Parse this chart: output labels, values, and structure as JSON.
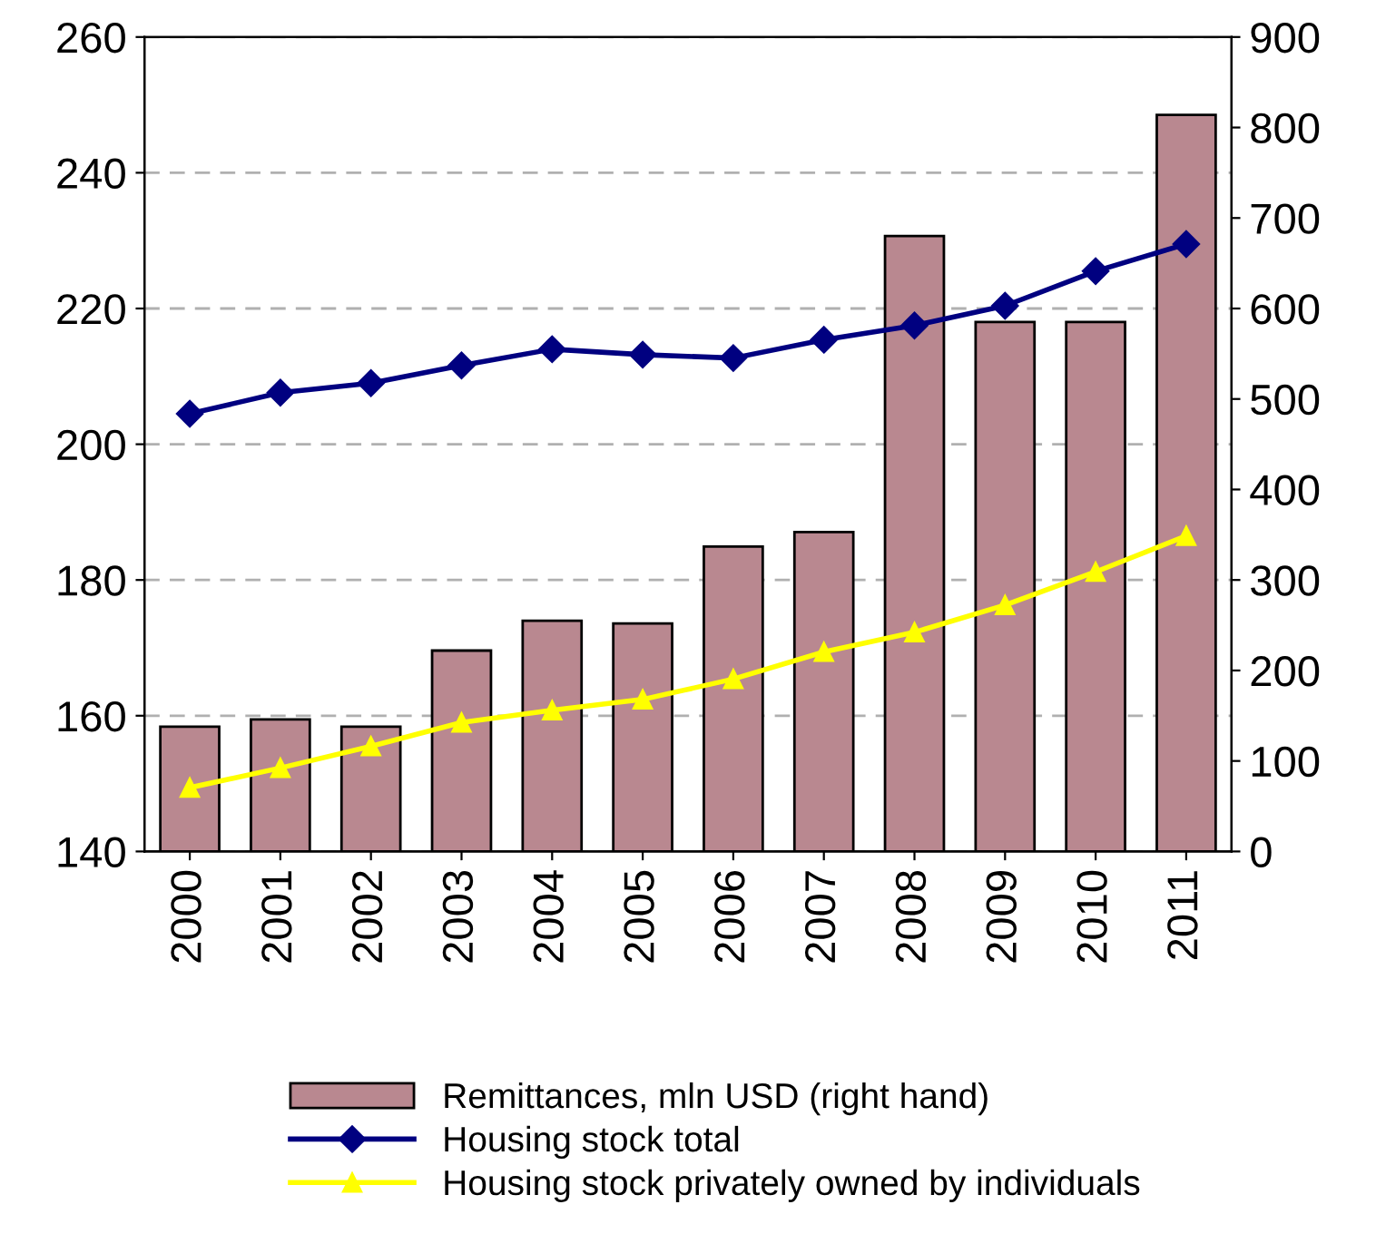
{
  "chart_data": {
    "type": "bar",
    "categories": [
      "2000",
      "2001",
      "2002",
      "2003",
      "2004",
      "2005",
      "2006",
      "2007",
      "2008",
      "2009",
      "2010",
      "2011"
    ],
    "series": [
      {
        "name": "Remittances, mln USD (right hand)",
        "axis": "y2",
        "color": "#b98890",
        "values": [
          138,
          146,
          138,
          222,
          255,
          252,
          337,
          353,
          680,
          585,
          585,
          814
        ]
      },
      {
        "name": "Housing stock total",
        "type": "line",
        "marker": "diamond",
        "color": "#000080",
        "values": [
          204.5,
          207.6,
          209,
          211.6,
          214,
          213.2,
          212.7,
          215.4,
          217.5,
          220.4,
          225.5,
          229.5
        ]
      },
      {
        "name": "Housing stock privately owned by individuals",
        "type": "line",
        "marker": "triangle",
        "color": "#ffff00",
        "values": [
          149.4,
          152.3,
          155.5,
          159,
          160.8,
          162.4,
          165.4,
          169.4,
          172.3,
          176.3,
          181.2,
          186.5
        ]
      }
    ],
    "ylim": [
      140,
      260
    ],
    "yticks": [
      140,
      160,
      180,
      200,
      220,
      240,
      260
    ],
    "y2lim": [
      0,
      900
    ],
    "y2ticks": [
      0,
      100,
      200,
      300,
      400,
      500,
      600,
      700,
      800,
      900
    ],
    "grid": "y",
    "legend": "bottom"
  }
}
